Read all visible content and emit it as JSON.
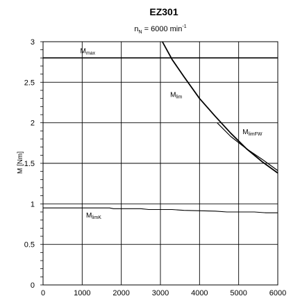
{
  "chart_data": {
    "type": "line",
    "title": "EZ301",
    "subtitle": {
      "base": "n",
      "sub": "N",
      "mid": " = 6000 min",
      "sup": "-1"
    },
    "xlabel": "",
    "ylabel": "M [Nm]",
    "xlim": [
      0,
      6000
    ],
    "ylim": [
      0,
      3
    ],
    "x_ticks": [
      0,
      1000,
      2000,
      3000,
      4000,
      5000,
      6000
    ],
    "x_tick_labels": [
      "0",
      "1000",
      "2000",
      "3000",
      "4000",
      "5000",
      "6000"
    ],
    "y_ticks": [
      0,
      0.5,
      1,
      1.5,
      2,
      2.5,
      3
    ],
    "y_tick_labels": [
      "0",
      "0.5",
      "1",
      "1.5",
      "2",
      "2.5",
      "3"
    ],
    "grid": true,
    "series": [
      {
        "name": "Mmax",
        "label_base": "M",
        "label_sub": "max",
        "x": [
          0,
          6000
        ],
        "y": [
          2.8,
          2.8
        ]
      },
      {
        "name": "Mlim",
        "label_base": "M",
        "label_sub": "lim",
        "x": [
          3050,
          3300,
          3600,
          4000,
          4400,
          4800,
          5200,
          5600,
          6000
        ],
        "y": [
          3.0,
          2.78,
          2.57,
          2.3,
          2.08,
          1.87,
          1.68,
          1.52,
          1.38
        ]
      },
      {
        "name": "MlimFW",
        "label_base": "M",
        "label_sub": "limFW",
        "x": [
          4450,
          4800,
          5200,
          5600,
          6000
        ],
        "y": [
          2.0,
          1.83,
          1.68,
          1.55,
          1.41
        ]
      },
      {
        "name": "MlimK",
        "label_base": "M",
        "label_sub": "limK",
        "x": [
          0,
          1000,
          1700,
          1800,
          2500,
          2700,
          3300,
          3600,
          4400,
          4700,
          5400,
          5700,
          6000
        ],
        "y": [
          0.95,
          0.95,
          0.95,
          0.94,
          0.94,
          0.93,
          0.93,
          0.92,
          0.91,
          0.9,
          0.9,
          0.89,
          0.89
        ]
      }
    ],
    "colors": {
      "line": "#000000",
      "grid": "#000000",
      "background": "#ffffff"
    }
  }
}
